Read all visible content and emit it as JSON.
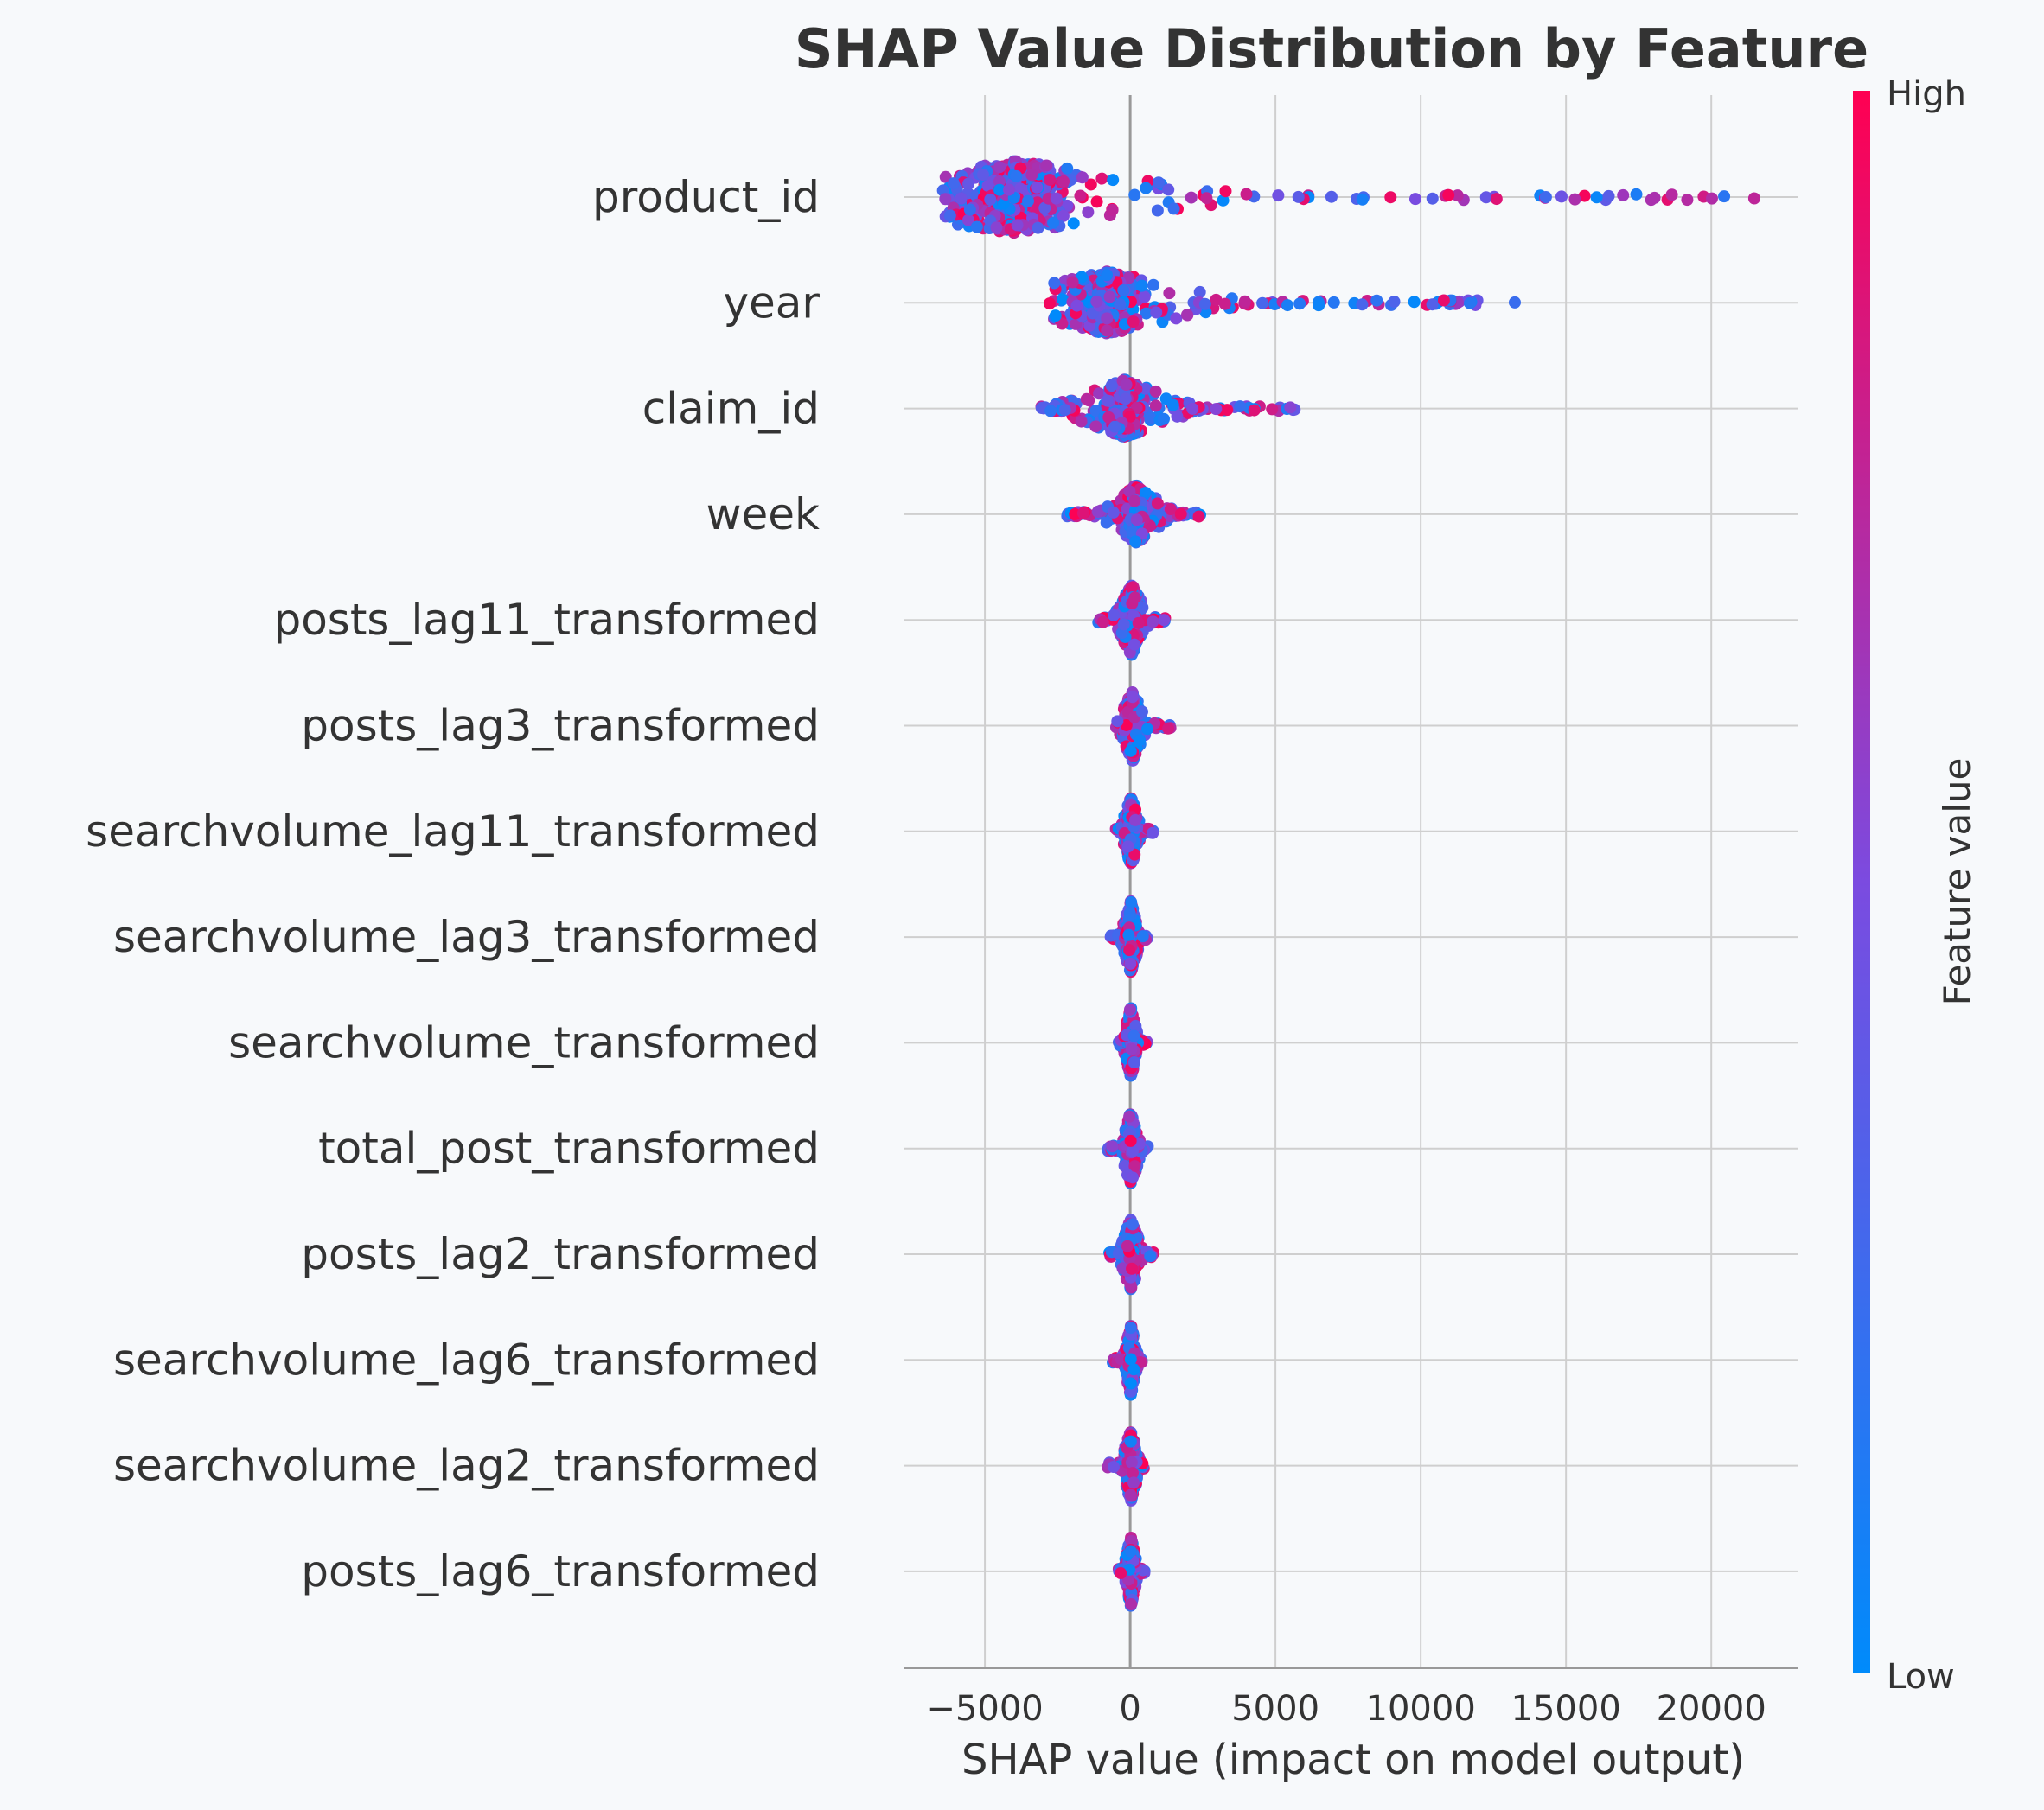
{
  "chart_data": {
    "type": "scatter",
    "subtype": "beeswarm",
    "title": "SHAP Value Distribution by Feature",
    "xlabel": "SHAP value (impact on model output)",
    "xlim": [
      -7800,
      23000
    ],
    "x_ticks": [
      -5000,
      0,
      5000,
      10000,
      15000,
      20000
    ],
    "x_tick_labels": [
      "−5000",
      "0",
      "5000",
      "10000",
      "15000",
      "20000"
    ],
    "grid": true,
    "colorbar": {
      "label": "Feature value",
      "high_label": "High",
      "low_label": "Low",
      "high_color": "#ff0052",
      "mid_color": "#7b4be0",
      "low_color": "#008bfb"
    },
    "features": [
      {
        "name": "product_id",
        "min": -6500,
        "max": 21800,
        "median": -4000,
        "spread": 30
      },
      {
        "name": "year",
        "min": -2800,
        "max": 13500,
        "median": -800,
        "spread": 26
      },
      {
        "name": "claim_id",
        "min": -3100,
        "max": 5800,
        "median": -200,
        "spread": 24
      },
      {
        "name": "week",
        "min": -2300,
        "max": 2600,
        "median": 200,
        "spread": 24
      },
      {
        "name": "posts_lag11_transformed",
        "min": -1100,
        "max": 1200,
        "median": 50,
        "spread": 26
      },
      {
        "name": "posts_lag3_transformed",
        "min": -500,
        "max": 1400,
        "median": 80,
        "spread": 26
      },
      {
        "name": "searchvolume_lag11_transformed",
        "min": -500,
        "max": 800,
        "median": 30,
        "spread": 26
      },
      {
        "name": "searchvolume_lag3_transformed",
        "min": -700,
        "max": 600,
        "median": 20,
        "spread": 26
      },
      {
        "name": "searchvolume_transformed",
        "min": -400,
        "max": 600,
        "median": 20,
        "spread": 26
      },
      {
        "name": "total_post_transformed",
        "min": -800,
        "max": 700,
        "median": 20,
        "spread": 26
      },
      {
        "name": "posts_lag2_transformed",
        "min": -800,
        "max": 800,
        "median": 20,
        "spread": 26
      },
      {
        "name": "searchvolume_lag6_transformed",
        "min": -600,
        "max": 400,
        "median": 20,
        "spread": 26
      },
      {
        "name": "searchvolume_lag2_transformed",
        "min": -800,
        "max": 500,
        "median": 20,
        "spread": 26
      },
      {
        "name": "posts_lag6_transformed",
        "min": -400,
        "max": 500,
        "median": 20,
        "spread": 26
      }
    ]
  }
}
